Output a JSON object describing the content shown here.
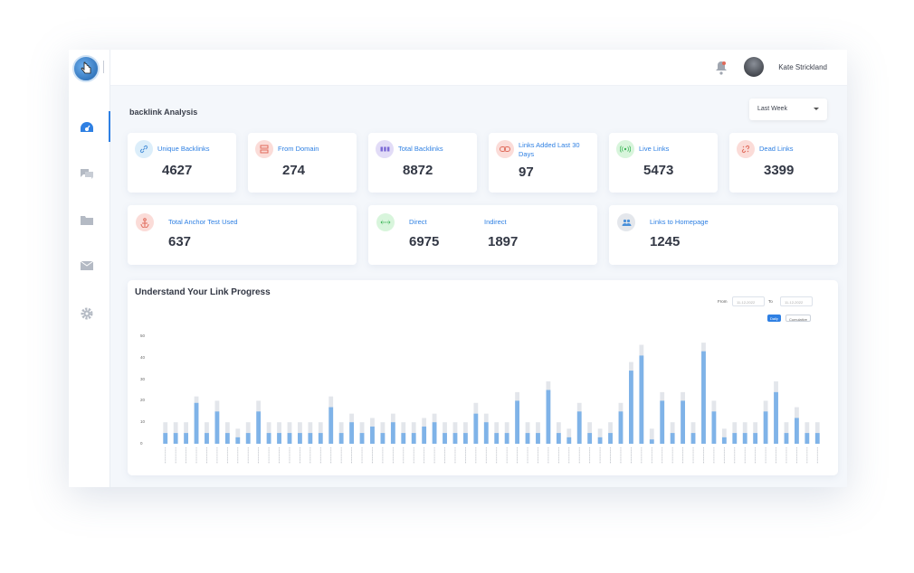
{
  "user": {
    "name": "Kate Strickland"
  },
  "page": {
    "title": "backlink Analysis"
  },
  "period_select": {
    "value": "Last Week"
  },
  "stats": [
    {
      "label": "Unique Backlinks",
      "value": "4627",
      "icon": "link-icon",
      "icon_bg": "#dceefa",
      "icon_color": "#4a90d9"
    },
    {
      "label": "From Domain",
      "value": "274",
      "icon": "server-icon",
      "icon_bg": "#fbdcd8",
      "icon_color": "#e06a5a"
    },
    {
      "label": "Total Backlinks",
      "value": "8872",
      "icon": "grid-icon",
      "icon_bg": "#e2dcf7",
      "icon_color": "#7c6ad6"
    },
    {
      "label": "Links Added Last 30 Days",
      "value": "97",
      "icon": "chain-icon",
      "icon_bg": "#fbdcd8",
      "icon_color": "#e06a5a"
    },
    {
      "label": "Live Links",
      "value": "5473",
      "icon": "broadcast-icon",
      "icon_bg": "#d8f5dc",
      "icon_color": "#3fb65a"
    },
    {
      "label": "Dead Links",
      "value": "3399",
      "icon": "broken-link-icon",
      "icon_bg": "#fbdcd8",
      "icon_color": "#e06a5a"
    }
  ],
  "anchor": {
    "label": "Total Anchor Test Used",
    "value": "637",
    "icon": "anchor-icon",
    "icon_bg": "#fbdcd8",
    "icon_color": "#e06a5a"
  },
  "direct_indirect": {
    "direct_label": "Direct",
    "direct_value": "6975",
    "indirect_label": "Indirect",
    "indirect_value": "1897",
    "icon": "arrows-icon",
    "icon_bg": "#d8f5dc",
    "icon_color": "#3fb65a"
  },
  "homepage": {
    "label": "Links to Homepage",
    "value": "1245",
    "icon": "users-icon",
    "icon_bg": "#e4e7ec",
    "icon_color": "#4a90d9"
  },
  "chart": {
    "title": "Understand Your Link Progress",
    "from_label": "From",
    "from_value": "11-12-2022",
    "to_label": "To",
    "to_value": "11-12-2022",
    "toggle_daily": "Daily",
    "toggle_cumulative": "Cumulative"
  },
  "chart_data": {
    "type": "bar",
    "title": "Understand Your Link Progress",
    "ylim": [
      0,
      50
    ],
    "yticks": [
      0,
      10,
      20,
      30,
      40,
      50
    ],
    "series": [
      {
        "values": [
          5,
          5,
          5,
          19,
          5,
          15,
          5,
          3,
          5,
          15,
          5,
          5,
          5,
          5,
          5,
          5,
          17,
          5,
          10,
          5,
          8,
          5,
          10,
          5,
          5,
          8,
          10,
          5,
          5,
          5,
          14,
          10,
          5,
          5,
          20,
          5,
          5,
          25,
          5,
          3,
          15,
          5,
          3,
          5,
          15,
          34,
          41,
          2,
          20,
          5,
          20,
          5,
          43,
          15,
          3,
          5,
          5,
          5,
          15,
          24,
          5,
          12,
          5,
          5
        ]
      },
      {
        "values": [
          10,
          10,
          10,
          22,
          10,
          20,
          10,
          7,
          10,
          20,
          10,
          10,
          10,
          10,
          10,
          10,
          22,
          10,
          14,
          10,
          12,
          10,
          14,
          10,
          10,
          12,
          14,
          10,
          10,
          10,
          19,
          14,
          10,
          10,
          24,
          10,
          10,
          29,
          10,
          7,
          19,
          10,
          7,
          10,
          19,
          38,
          46,
          7,
          24,
          10,
          24,
          10,
          47,
          20,
          7,
          10,
          10,
          10,
          20,
          29,
          10,
          17,
          10,
          10
        ]
      }
    ],
    "colors": {
      "primary": "#7fb3e8",
      "secondary": "#e3e6eb"
    },
    "grid": false
  }
}
